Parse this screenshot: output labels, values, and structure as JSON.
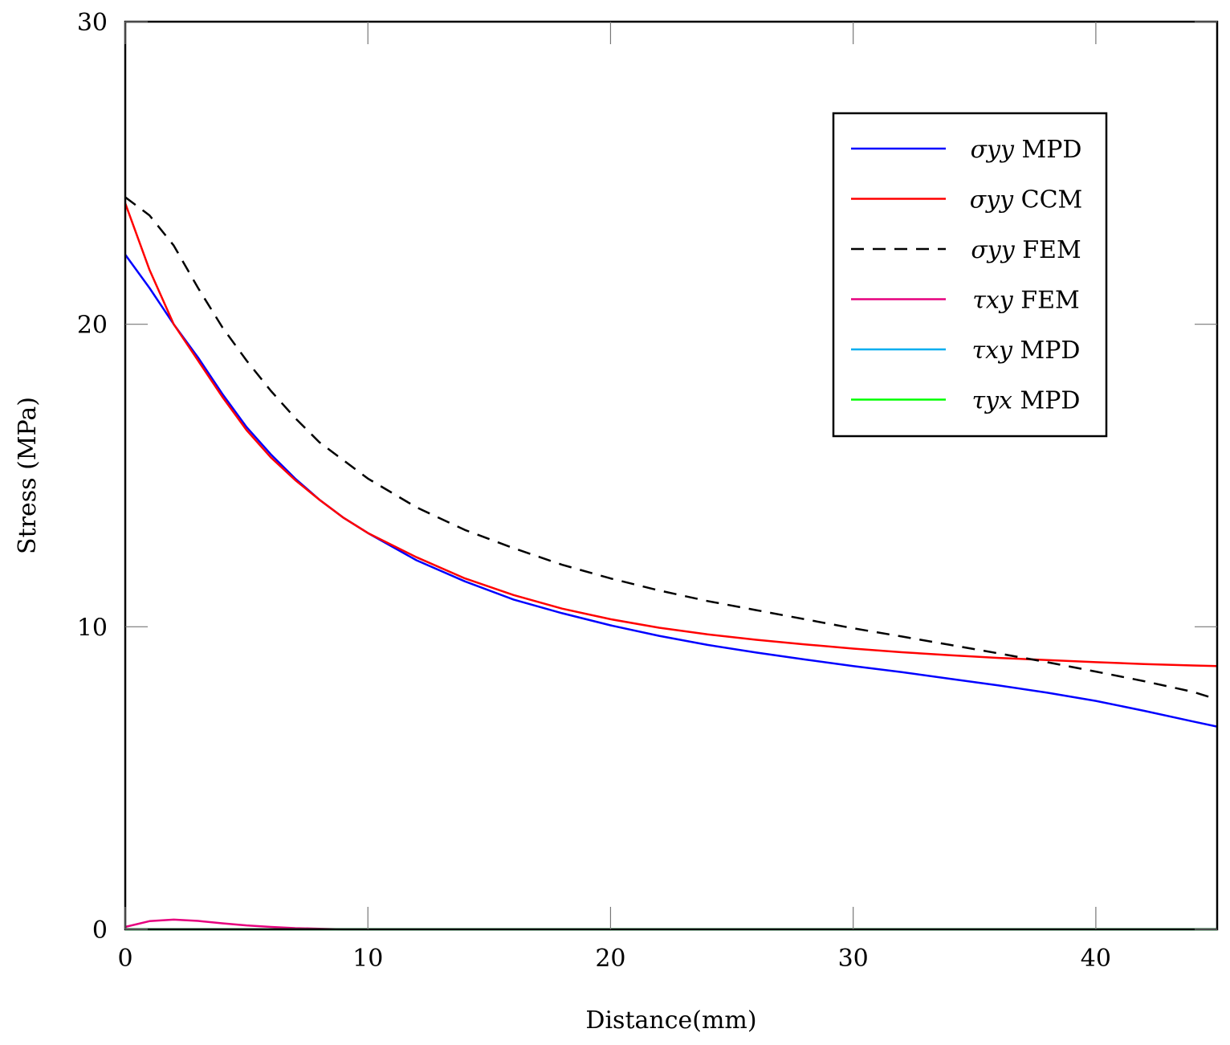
{
  "chart_data": {
    "type": "line",
    "xlabel": "Distance(mm)",
    "ylabel": "Stress (MPa)",
    "xlim": [
      0,
      45
    ],
    "ylim": [
      0,
      30
    ],
    "xticks": [
      "0",
      "10",
      "20",
      "30",
      "40"
    ],
    "yticks": [
      "0",
      "10",
      "20",
      "30"
    ],
    "grid": false,
    "legend_position": "top-right",
    "series": [
      {
        "name": "σyy MPD",
        "symbol": "σ",
        "subscript": "yy",
        "method": "MPD",
        "color": "#0000ff",
        "dash": false,
        "x": [
          0,
          1,
          2,
          3,
          4,
          5,
          6,
          7,
          8,
          9,
          10,
          12,
          14,
          16,
          18,
          20,
          22,
          24,
          26,
          28,
          30,
          32,
          34,
          36,
          38,
          40,
          42,
          44,
          45
        ],
        "y": [
          22.3,
          21.2,
          20.0,
          18.9,
          17.7,
          16.6,
          15.7,
          14.9,
          14.2,
          13.6,
          13.1,
          12.2,
          11.5,
          10.9,
          10.45,
          10.05,
          9.7,
          9.4,
          9.15,
          8.92,
          8.7,
          8.5,
          8.28,
          8.06,
          7.82,
          7.55,
          7.22,
          6.87,
          6.7
        ]
      },
      {
        "name": "σyy CCM",
        "symbol": "σ",
        "subscript": "yy",
        "method": "CCM",
        "color": "#ff0000",
        "dash": false,
        "x": [
          0,
          1,
          2,
          3,
          4,
          5,
          6,
          7,
          8,
          9,
          10,
          12,
          14,
          16,
          18,
          20,
          22,
          24,
          26,
          28,
          30,
          32,
          34,
          36,
          38,
          40,
          42,
          44,
          45
        ],
        "y": [
          24.0,
          21.8,
          20.0,
          18.8,
          17.6,
          16.5,
          15.6,
          14.85,
          14.2,
          13.6,
          13.1,
          12.3,
          11.6,
          11.05,
          10.6,
          10.25,
          9.97,
          9.75,
          9.57,
          9.42,
          9.28,
          9.16,
          9.06,
          8.97,
          8.9,
          8.83,
          8.77,
          8.72,
          8.7
        ]
      },
      {
        "name": "σyy FEM",
        "symbol": "σ",
        "subscript": "yy",
        "method": "FEM",
        "color": "#000000",
        "dash": true,
        "x": [
          0,
          1,
          2,
          3,
          4,
          5,
          6,
          7,
          8,
          9,
          10,
          12,
          14,
          16,
          18,
          20,
          22,
          24,
          26,
          28,
          30,
          32,
          34,
          36,
          38,
          40,
          42,
          44,
          45
        ],
        "y": [
          24.2,
          23.6,
          22.6,
          21.2,
          19.9,
          18.8,
          17.8,
          16.9,
          16.1,
          15.5,
          14.9,
          13.95,
          13.2,
          12.6,
          12.05,
          11.6,
          11.2,
          10.85,
          10.55,
          10.25,
          9.95,
          9.68,
          9.4,
          9.12,
          8.83,
          8.52,
          8.2,
          7.85,
          7.6
        ]
      },
      {
        "name": "τxy FEM",
        "symbol": "τ",
        "subscript": "xy",
        "method": "FEM",
        "color": "#e6007e",
        "dash": false,
        "x": [
          0,
          1,
          2,
          3,
          4,
          5,
          6,
          7,
          8,
          9,
          10,
          45
        ],
        "y": [
          0.08,
          0.27,
          0.32,
          0.28,
          0.2,
          0.13,
          0.08,
          0.04,
          0.02,
          0.0,
          0.0,
          0.0
        ]
      },
      {
        "name": "τxy MPD",
        "symbol": "τ",
        "subscript": "xy",
        "method": "MPD",
        "color": "#00aeef",
        "dash": false,
        "x": [
          0,
          45
        ],
        "y": [
          0.0,
          0.0
        ]
      },
      {
        "name": "τyx MPD",
        "symbol": "τ",
        "subscript": "yx",
        "method": "MPD",
        "color": "#00ff00",
        "dash": false,
        "x": [
          0,
          45
        ],
        "y": [
          0.0,
          0.0
        ]
      }
    ]
  }
}
